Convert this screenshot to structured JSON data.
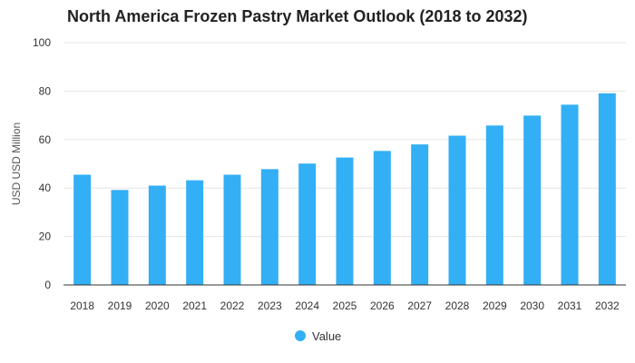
{
  "chart_data": {
    "type": "bar",
    "title": "North America Frozen Pastry Market Outlook (2018 to 2032)",
    "xlabel": "",
    "ylabel": "USD USD Million",
    "categories": [
      "2018",
      "2019",
      "2020",
      "2021",
      "2022",
      "2023",
      "2024",
      "2025",
      "2026",
      "2027",
      "2028",
      "2029",
      "2030",
      "2031",
      "2032"
    ],
    "series": [
      {
        "name": "Value",
        "values": [
          45.5,
          39.2,
          41.0,
          43.2,
          45.5,
          47.8,
          50.1,
          52.6,
          55.3,
          58.0,
          61.6,
          65.8,
          69.9,
          74.4,
          79.1
        ]
      }
    ],
    "ylim": [
      0,
      100
    ],
    "yticks": [
      "0",
      "20",
      "40",
      "60",
      "80",
      "100"
    ],
    "grid": true,
    "legend": "bottom-center",
    "colors": {
      "bar": "#33aff5",
      "grid": "#e6e6e6",
      "axis": "#333333"
    }
  }
}
